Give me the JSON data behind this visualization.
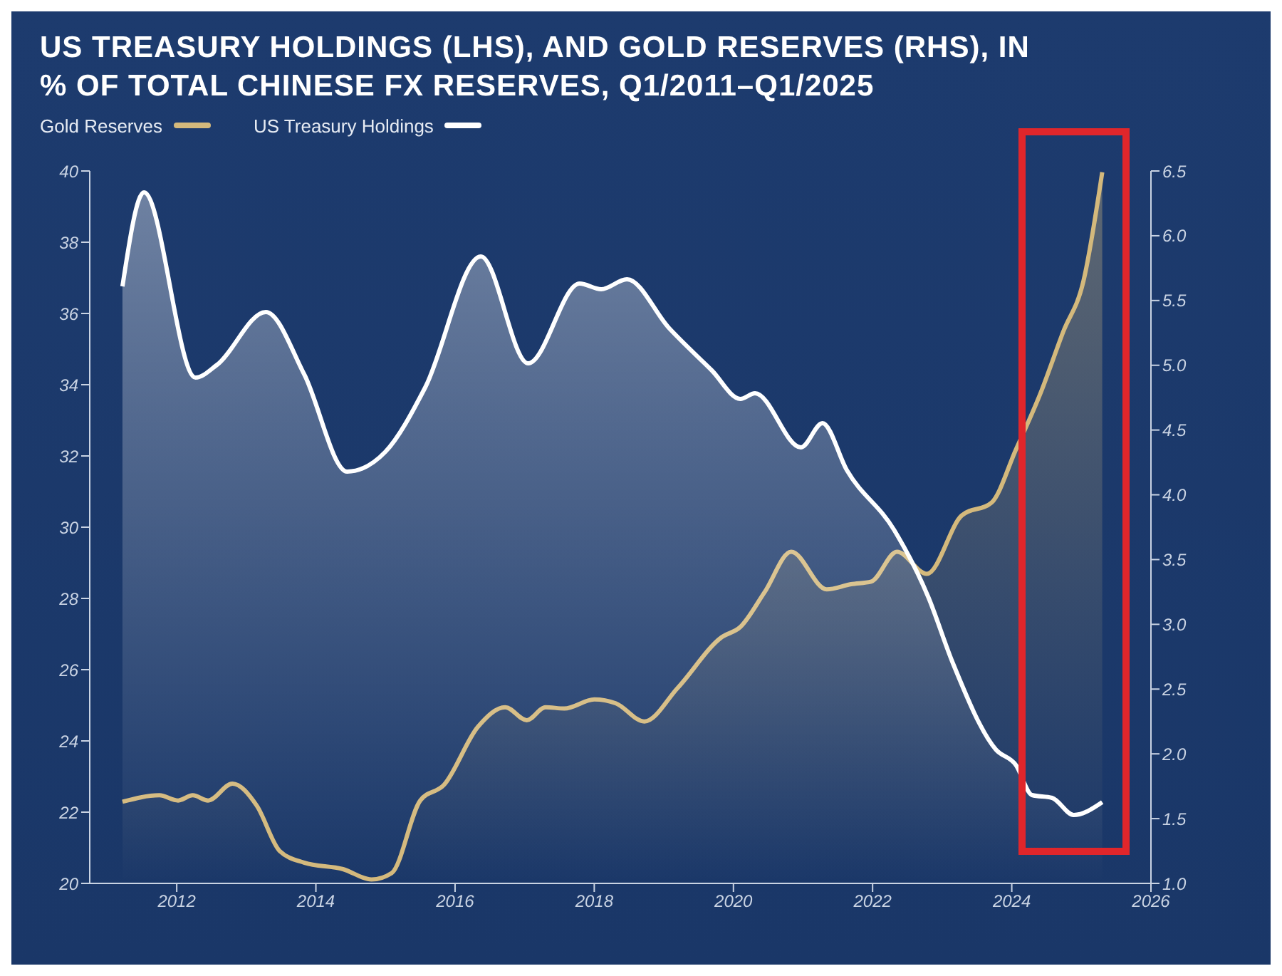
{
  "chart_data": {
    "type": "area",
    "title": "US TREASURY HOLDINGS (LHS), AND GOLD RESERVES (RHS), IN % OF TOTAL CHINESE FX RESERVES, Q1/2011–Q1/2025",
    "series": [
      {
        "name": "Gold Reserves",
        "color": "#d4b97c",
        "axis": "y2",
        "x": [
          2011.22,
          2011.75,
          2012.02,
          2012.23,
          2012.45,
          2012.8,
          2013.15,
          2013.48,
          2013.83,
          2014.39,
          2014.8,
          2015.09,
          2015.5,
          2015.84,
          2016.33,
          2016.72,
          2017.03,
          2017.3,
          2017.57,
          2018.0,
          2018.31,
          2018.72,
          2019.2,
          2019.83,
          2020.1,
          2020.45,
          2020.83,
          2021.34,
          2021.69,
          2021.98,
          2022.35,
          2022.78,
          2023.28,
          2023.71,
          2024.06,
          2024.41,
          2024.74,
          2025.03,
          2025.3
        ],
        "values": [
          1.63,
          1.68,
          1.64,
          1.68,
          1.64,
          1.77,
          1.6,
          1.25,
          1.16,
          1.11,
          1.03,
          1.08,
          1.64,
          1.76,
          2.21,
          2.36,
          2.26,
          2.36,
          2.35,
          2.42,
          2.39,
          2.25,
          2.51,
          2.9,
          2.98,
          3.25,
          3.56,
          3.27,
          3.31,
          3.33,
          3.56,
          3.39,
          3.84,
          3.94,
          4.35,
          4.78,
          5.26,
          5.65,
          6.49
        ]
      },
      {
        "name": "US Treasury Holdings",
        "color": "#ffffff",
        "x": [
          2011.22,
          2011.53,
          2012.27,
          2012.58,
          2013.28,
          2013.83,
          2014.45,
          2015.0,
          2015.57,
          2016.37,
          2017.05,
          2017.79,
          2018.1,
          2018.47,
          2019.07,
          2019.69,
          2020.1,
          2020.31,
          2020.97,
          2021.28,
          2021.63,
          2022.31,
          2022.8,
          2023.15,
          2023.77,
          2024.06,
          2024.29,
          2024.58,
          2024.89,
          2025.3
        ],
        "values": [
          36.76,
          39.4,
          34.2,
          34.56,
          36.04,
          34.3,
          31.56,
          32.12,
          33.92,
          37.6,
          34.6,
          36.84,
          36.68,
          36.96,
          35.6,
          34.4,
          33.6,
          33.76,
          32.24,
          32.92,
          31.6,
          29.92,
          28.04,
          26.2,
          23.76,
          23.32,
          22.48,
          22.4,
          21.92,
          22.28
        ]
      }
    ],
    "xlim": [
      2010.75,
      2026
    ],
    "xticks": [
      2012,
      2014,
      2016,
      2018,
      2020,
      2022,
      2024,
      2026
    ],
    "ylim": [
      20,
      40
    ],
    "yticks": [
      20,
      22,
      24,
      26,
      28,
      30,
      32,
      34,
      36,
      38,
      40
    ],
    "y2lim": [
      1.0,
      6.5
    ],
    "y2ticks": [
      {
        "value": 1,
        "label": "1.0"
      },
      1.5,
      {
        "value": 2,
        "label": "2.0"
      },
      2.5,
      {
        "value": 3,
        "label": "3.0"
      },
      3.5,
      {
        "value": 4,
        "label": "4.0"
      },
      4.5,
      {
        "value": 5,
        "label": "5.0"
      },
      5.5,
      {
        "value": 6,
        "label": "6.0"
      },
      6.5
    ],
    "grid": false,
    "legend": "top left"
  }
}
